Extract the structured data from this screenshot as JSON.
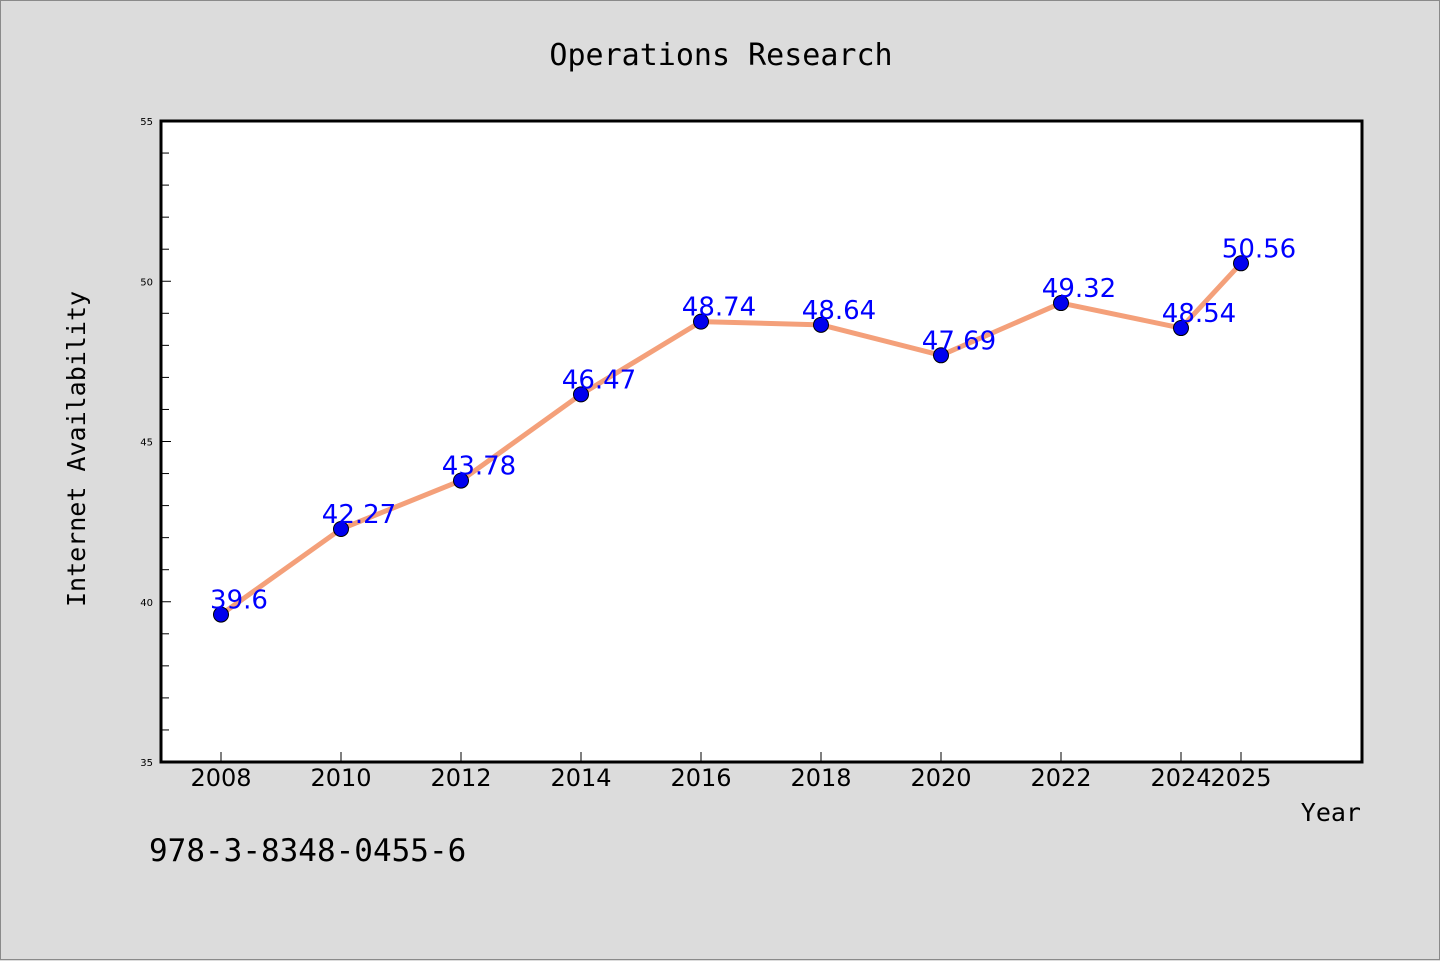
{
  "chart_data": {
    "type": "line",
    "title": "Operations Research",
    "xlabel": "Year",
    "ylabel": "Internet Availability",
    "x": [
      "2008",
      "2010",
      "2012",
      "2014",
      "2016",
      "2018",
      "2020",
      "2022",
      "2024",
      "2025"
    ],
    "series": [
      {
        "values": [
          39.6,
          42.27,
          43.78,
          46.47,
          48.74,
          48.64,
          47.69,
          49.32,
          48.54,
          50.56
        ]
      }
    ],
    "data_labels": [
      "39.6",
      "42.27",
      "43.78",
      "46.47",
      "48.74",
      "48.64",
      "47.69",
      "49.32",
      "48.54",
      "50.56"
    ],
    "y_ticks": [
      "35",
      "40",
      "45",
      "50",
      "55"
    ],
    "ylim": [
      35,
      55
    ],
    "grid": false,
    "line_color": "#f4a07a",
    "marker_color": "#0000ee",
    "label_color": "#0000ff"
  },
  "footer": {
    "isbn": "978-3-8348-0455-6"
  }
}
